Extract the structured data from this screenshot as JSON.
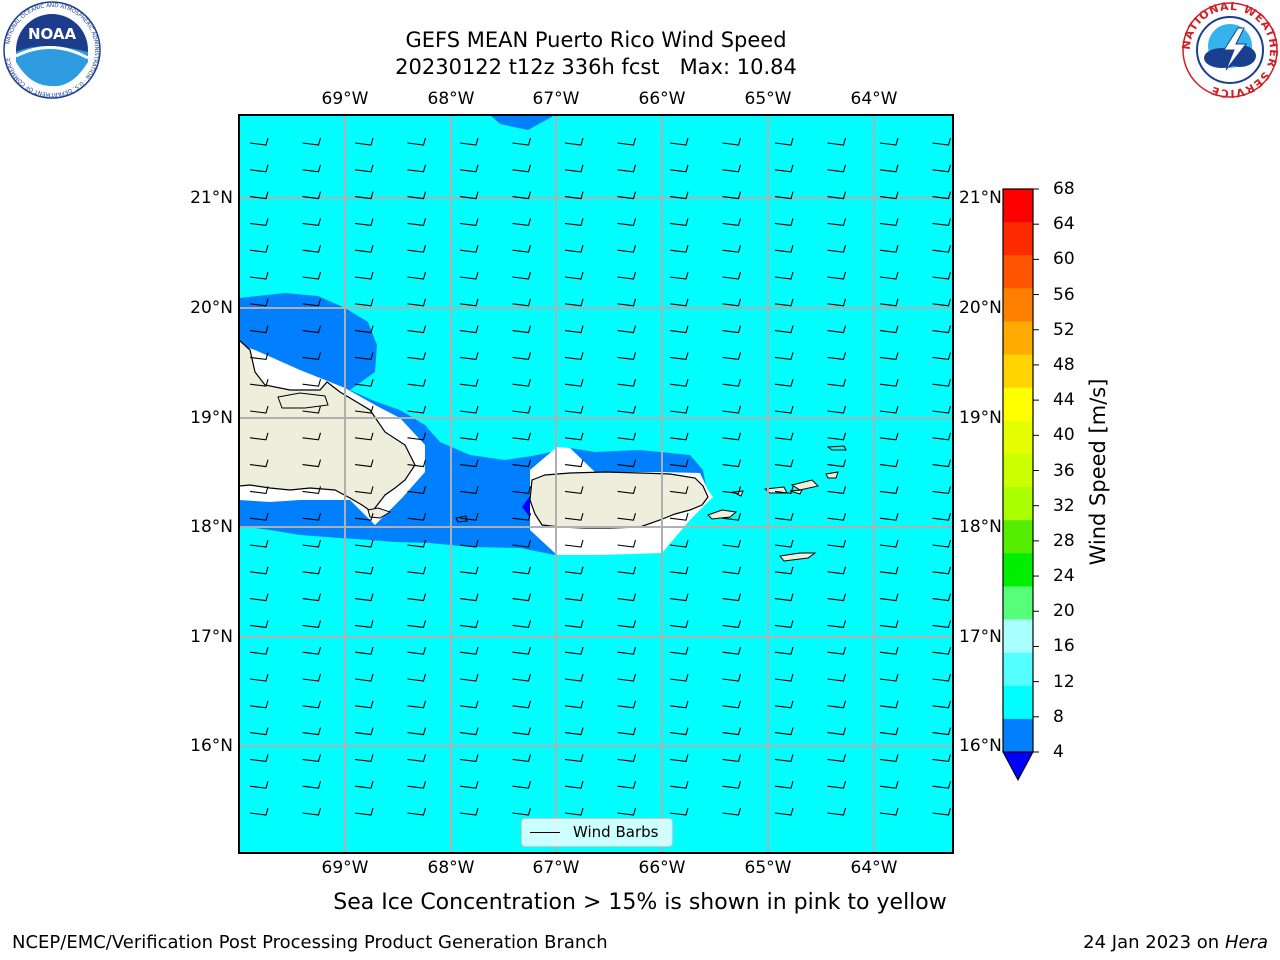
{
  "title": {
    "line1": "GEFS MEAN Puerto Rico Wind Speed",
    "line2": "20230122 t12z 336h fcst   Max: 10.84"
  },
  "map": {
    "lon_labels": [
      "69°W",
      "68°W",
      "67°W",
      "66°W",
      "65°W",
      "64°W"
    ],
    "lat_labels": [
      "21°N",
      "20°N",
      "19°N",
      "18°N",
      "17°N",
      "16°N"
    ],
    "colors": {
      "ocean_cyan": "#00ffff",
      "band_blue": "#0080ff",
      "deep_blue": "#0000ff",
      "land": "#eeeedd",
      "grid": "#b0b0b0"
    }
  },
  "legend": {
    "label": "Wind Barbs"
  },
  "colorbar": {
    "label": "Wind Speed [m/s]",
    "ticks": [
      "68",
      "64",
      "60",
      "56",
      "52",
      "48",
      "44",
      "40",
      "36",
      "32",
      "28",
      "24",
      "20",
      "16",
      "12",
      "8",
      "4"
    ],
    "colors": [
      "#ff0000",
      "#ff2a00",
      "#ff5500",
      "#ff8000",
      "#ffaa00",
      "#ffd400",
      "#ffff00",
      "#e6ff00",
      "#ccff00",
      "#aaff00",
      "#55ee00",
      "#00ee00",
      "#55ff77",
      "#aaffff",
      "#55ffff",
      "#00ffff",
      "#0080ff"
    ],
    "extend_color": "#0000ff"
  },
  "note": "Sea Ice Concentration > 15% is shown in pink to yellow",
  "footer": {
    "left": "NCEP/EMC/Verification Post Processing Product Generation Branch",
    "right_date": "24 Jan 2023 on ",
    "right_machine": "Hera"
  },
  "logos": {
    "noara": "NOAA",
    "noara_ring": "NATIONAL OCEANIC AND ATMOSPHERIC ADMINISTRATION · U.S. DEPARTMENT OF COMMERCE",
    "nws_ring": "NATIONAL WEATHER SERVICE"
  }
}
